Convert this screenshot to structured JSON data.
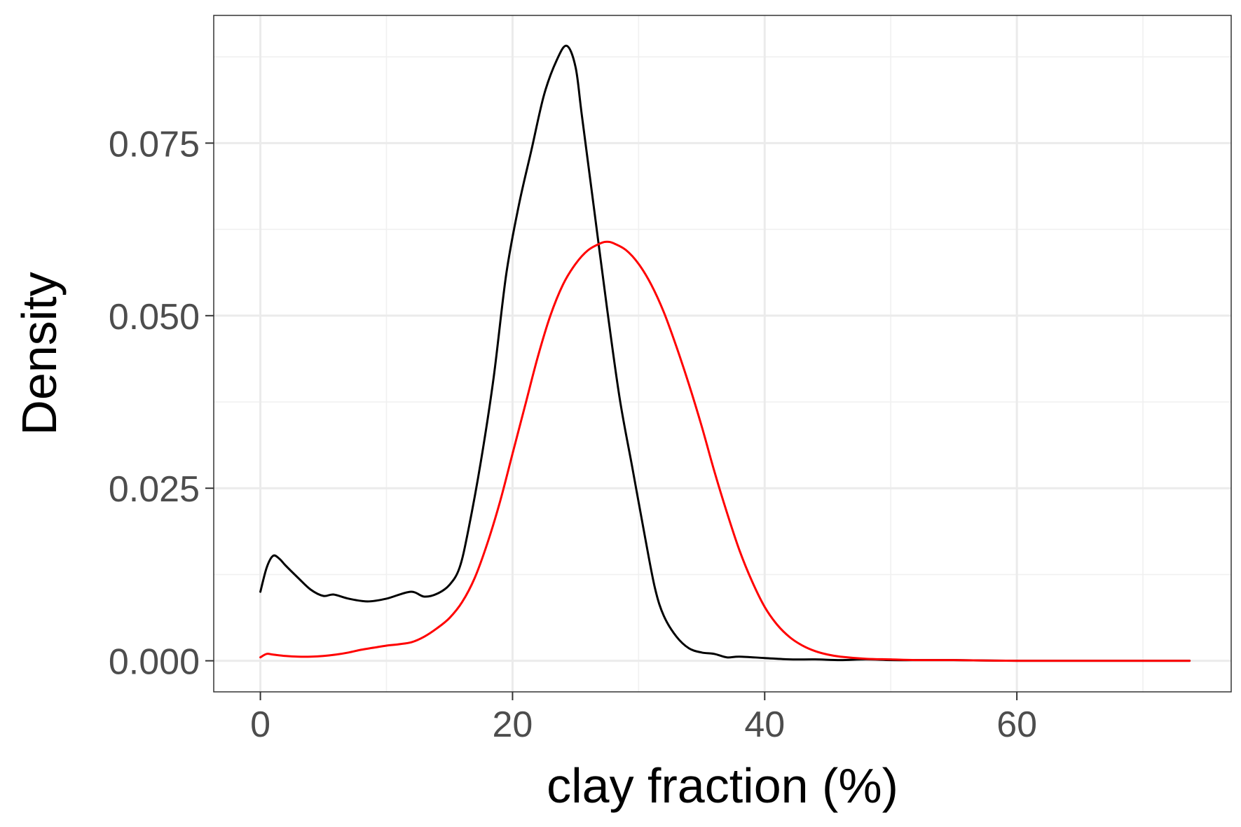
{
  "chart_data": {
    "type": "line",
    "title": "",
    "xlabel": "clay fraction (%)",
    "ylabel": "Density",
    "xlim": [
      -3.7,
      77
    ],
    "ylim": [
      -0.0045,
      0.0935
    ],
    "x_ticks": [
      0,
      20,
      40,
      60
    ],
    "x_tick_labels": [
      "0",
      "20",
      "40",
      "60"
    ],
    "y_ticks": [
      0.0,
      0.025,
      0.05,
      0.075
    ],
    "y_tick_labels": [
      "0.000",
      "0.025",
      "0.050",
      "0.075"
    ],
    "grid": true,
    "legend": "none",
    "series": [
      {
        "color": "#000000",
        "points": [
          [
            0,
            0.01
          ],
          [
            0.5,
            0.0135
          ],
          [
            1.0,
            0.0152
          ],
          [
            1.5,
            0.0148
          ],
          [
            2.0,
            0.0138
          ],
          [
            3.0,
            0.012
          ],
          [
            4.0,
            0.0103
          ],
          [
            5.0,
            0.0094
          ],
          [
            5.8,
            0.0096
          ],
          [
            7.0,
            0.009
          ],
          [
            8.5,
            0.0086
          ],
          [
            10.0,
            0.009
          ],
          [
            11.9,
            0.01
          ],
          [
            13.0,
            0.0093
          ],
          [
            14.0,
            0.0097
          ],
          [
            15.0,
            0.011
          ],
          [
            15.8,
            0.0135
          ],
          [
            16.5,
            0.019
          ],
          [
            17.5,
            0.029
          ],
          [
            18.5,
            0.041
          ],
          [
            19.5,
            0.056
          ],
          [
            20.5,
            0.066
          ],
          [
            21.5,
            0.074
          ],
          [
            22.5,
            0.082
          ],
          [
            23.5,
            0.087
          ],
          [
            24.3,
            0.0891
          ],
          [
            25.0,
            0.086
          ],
          [
            25.5,
            0.079
          ],
          [
            26.5,
            0.065
          ],
          [
            27.5,
            0.051
          ],
          [
            28.5,
            0.038
          ],
          [
            29.5,
            0.028
          ],
          [
            30.5,
            0.018
          ],
          [
            31.3,
            0.0105
          ],
          [
            32.0,
            0.0065
          ],
          [
            33.0,
            0.0035
          ],
          [
            34.0,
            0.0018
          ],
          [
            35.0,
            0.0012
          ],
          [
            36.0,
            0.001
          ],
          [
            37.0,
            0.0005
          ],
          [
            38.0,
            0.0006
          ],
          [
            40.0,
            0.0004
          ],
          [
            42.0,
            0.0002
          ],
          [
            44.0,
            0.0002
          ],
          [
            46.0,
            0.0001
          ],
          [
            48.0,
            0.0002
          ],
          [
            50.0,
            0.0001
          ],
          [
            52.0,
            0.0001
          ],
          [
            55.0,
            0.0001
          ],
          [
            60.0,
            0.0
          ],
          [
            65.0,
            0.0
          ],
          [
            70.0,
            0.0
          ],
          [
            73.7,
            0.0
          ]
        ]
      },
      {
        "color": "#ff0000",
        "points": [
          [
            0,
            0.0005
          ],
          [
            0.5,
            0.001
          ],
          [
            1.0,
            0.0009
          ],
          [
            2.0,
            0.0007
          ],
          [
            3.0,
            0.0006
          ],
          [
            4.0,
            0.0006
          ],
          [
            5.0,
            0.0007
          ],
          [
            6.0,
            0.0009
          ],
          [
            7.0,
            0.0012
          ],
          [
            8.0,
            0.0016
          ],
          [
            9.0,
            0.0019
          ],
          [
            10.0,
            0.0022
          ],
          [
            11.0,
            0.0024
          ],
          [
            12.0,
            0.0027
          ],
          [
            13.0,
            0.0035
          ],
          [
            14.0,
            0.0047
          ],
          [
            15.0,
            0.0062
          ],
          [
            16.0,
            0.0085
          ],
          [
            17.0,
            0.012
          ],
          [
            18.0,
            0.017
          ],
          [
            19.0,
            0.023
          ],
          [
            20.0,
            0.03
          ],
          [
            21.0,
            0.037
          ],
          [
            22.0,
            0.044
          ],
          [
            23.0,
            0.05
          ],
          [
            24.0,
            0.0545
          ],
          [
            25.0,
            0.0575
          ],
          [
            26.0,
            0.0595
          ],
          [
            27.0,
            0.0605
          ],
          [
            27.5,
            0.0607
          ],
          [
            28.0,
            0.0605
          ],
          [
            29.0,
            0.0595
          ],
          [
            30.0,
            0.0575
          ],
          [
            31.0,
            0.0545
          ],
          [
            32.0,
            0.0505
          ],
          [
            33.0,
            0.0455
          ],
          [
            34.0,
            0.04
          ],
          [
            35.0,
            0.034
          ],
          [
            36.0,
            0.0275
          ],
          [
            37.0,
            0.0215
          ],
          [
            38.0,
            0.016
          ],
          [
            39.0,
            0.0115
          ],
          [
            40.0,
            0.0078
          ],
          [
            41.0,
            0.0052
          ],
          [
            42.0,
            0.0034
          ],
          [
            43.0,
            0.0022
          ],
          [
            44.0,
            0.0014
          ],
          [
            45.0,
            0.0009
          ],
          [
            46.0,
            0.0006
          ],
          [
            48.0,
            0.0003
          ],
          [
            50.0,
            0.0002
          ],
          [
            52.0,
            0.0001
          ],
          [
            55.0,
            0.0001
          ],
          [
            60.0,
            0.0
          ],
          [
            65.0,
            0.0
          ],
          [
            70.0,
            0.0
          ],
          [
            73.7,
            0.0
          ]
        ]
      }
    ]
  }
}
